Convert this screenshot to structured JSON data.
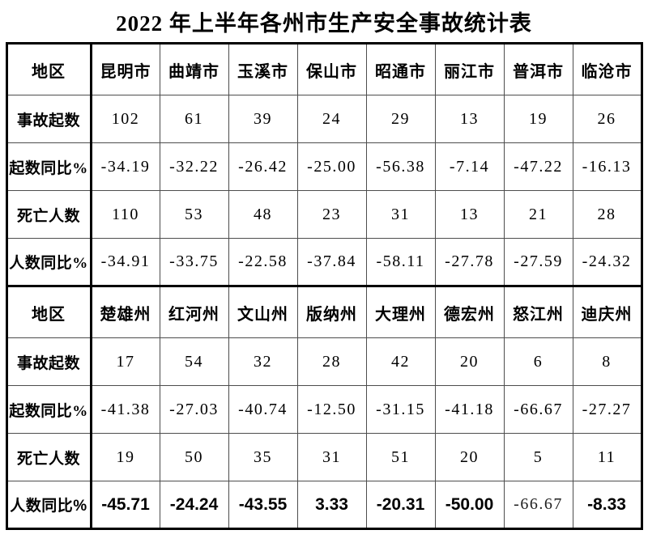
{
  "title": "2022 年上半年各州市生产安全事故统计表",
  "colors": {
    "background": "#ffffff",
    "text": "#000000",
    "thick_border": "#000000",
    "thin_border": "#4d4d4d"
  },
  "chart_data": {
    "type": "table",
    "title": "2022 年上半年各州市生产安全事故统计表",
    "corner_label": "地区",
    "sections": [
      {
        "header_label": "地区",
        "columns": [
          "昆明市",
          "曲靖市",
          "玉溪市",
          "保山市",
          "昭通市",
          "丽江市",
          "普洱市",
          "临沧市"
        ],
        "rows": [
          {
            "label": "事故起数",
            "values": [
              "102",
              "61",
              "39",
              "24",
              "29",
              "13",
              "19",
              "26"
            ]
          },
          {
            "label": "起数同比%",
            "values": [
              "-34.19",
              "-32.22",
              "-26.42",
              "-25.00",
              "-56.38",
              "-7.14",
              "-47.22",
              "-16.13"
            ]
          },
          {
            "label": "死亡人数",
            "values": [
              "110",
              "53",
              "48",
              "23",
              "31",
              "13",
              "21",
              "28"
            ]
          },
          {
            "label": "人数同比%",
            "values": [
              "-34.91",
              "-33.75",
              "-22.58",
              "-37.84",
              "-58.11",
              "-27.78",
              "-27.59",
              "-24.32"
            ]
          }
        ]
      },
      {
        "header_label": "地区",
        "columns": [
          "楚雄州",
          "红河州",
          "文山州",
          "版纳州",
          "大理州",
          "德宏州",
          "怒江州",
          "迪庆州"
        ],
        "rows": [
          {
            "label": "事故起数",
            "values": [
              "17",
              "54",
              "32",
              "28",
              "42",
              "20",
              "6",
              "8"
            ]
          },
          {
            "label": "起数同比%",
            "values": [
              "-41.38",
              "-27.03",
              "-40.74",
              "-12.50",
              "-31.15",
              "-41.18",
              "-66.67",
              "-27.27"
            ]
          },
          {
            "label": "死亡人数",
            "values": [
              "19",
              "50",
              "35",
              "31",
              "51",
              "20",
              "5",
              "11"
            ]
          },
          {
            "label": "人数同比%",
            "values": [
              "-45.71",
              "-24.24",
              "-43.55",
              "3.33",
              "-20.31",
              "-50.00",
              "-66.67",
              "-8.33"
            ],
            "emphasis": true,
            "plain_font_cells": [
              6
            ]
          }
        ]
      }
    ]
  }
}
